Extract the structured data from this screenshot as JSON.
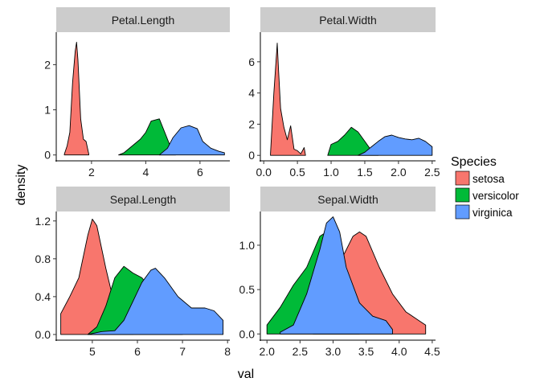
{
  "chart_data": {
    "type": "area",
    "subtype": "faceted density",
    "xlabel": "val",
    "ylabel": "density",
    "grid": false,
    "legend": {
      "title": "Species",
      "position": "right",
      "entries": [
        {
          "name": "setosa",
          "color": "#F8766D"
        },
        {
          "name": "versicolor",
          "color": "#00BA38"
        },
        {
          "name": "virginica",
          "color": "#619CFF"
        }
      ]
    },
    "facets": [
      {
        "title": "Petal.Length",
        "xlim": [
          0.7,
          7.1
        ],
        "ylim": [
          -0.13,
          2.72
        ],
        "xticks": [
          2,
          4,
          6
        ],
        "yticks": [
          0,
          1,
          2
        ],
        "series": [
          {
            "name": "setosa",
            "color": "#F8766D",
            "x": [
              1.0,
              1.1,
              1.2,
              1.3,
              1.4,
              1.45,
              1.5,
              1.6,
              1.7,
              1.8,
              1.9
            ],
            "y": [
              0.02,
              0.2,
              0.5,
              1.6,
              2.3,
              2.5,
              2.1,
              0.8,
              0.35,
              0.3,
              0.02
            ]
          },
          {
            "name": "versicolor",
            "color": "#00BA38",
            "x": [
              3.0,
              3.2,
              3.5,
              3.8,
              4.0,
              4.2,
              4.5,
              4.7,
              5.0,
              5.1
            ],
            "y": [
              0.0,
              0.05,
              0.2,
              0.35,
              0.5,
              0.75,
              0.8,
              0.5,
              0.05,
              0.0
            ]
          },
          {
            "name": "virginica",
            "color": "#619CFF",
            "x": [
              4.5,
              4.8,
              5.0,
              5.3,
              5.6,
              5.9,
              6.1,
              6.4,
              6.7,
              6.9
            ],
            "y": [
              0.0,
              0.15,
              0.38,
              0.6,
              0.65,
              0.58,
              0.3,
              0.15,
              0.08,
              0.05
            ]
          }
        ]
      },
      {
        "title": "Petal.Width",
        "xlim": [
          -0.05,
          2.55
        ],
        "ylim": [
          -0.35,
          7.9
        ],
        "xticks": [
          0.0,
          0.5,
          1.0,
          1.5,
          2.0,
          2.5
        ],
        "yticks": [
          0,
          2,
          4,
          6
        ],
        "series": [
          {
            "name": "setosa",
            "color": "#F8766D",
            "x": [
              0.1,
              0.15,
              0.2,
              0.22,
              0.25,
              0.3,
              0.35,
              0.4,
              0.45,
              0.5,
              0.55,
              0.6,
              0.62
            ],
            "y": [
              0.1,
              4.0,
              7.2,
              5.5,
              3.0,
              1.8,
              1.0,
              1.9,
              0.4,
              0.3,
              0.1,
              0.5,
              0.0
            ]
          },
          {
            "name": "versicolor",
            "color": "#00BA38",
            "x": [
              0.95,
              1.0,
              1.1,
              1.2,
              1.3,
              1.4,
              1.5,
              1.6,
              1.7
            ],
            "y": [
              0.0,
              0.7,
              0.9,
              1.3,
              1.8,
              1.5,
              0.9,
              0.3,
              0.0
            ]
          },
          {
            "name": "virginica",
            "color": "#619CFF",
            "x": [
              1.4,
              1.5,
              1.6,
              1.7,
              1.8,
              1.9,
              2.0,
              2.1,
              2.2,
              2.3,
              2.4,
              2.5
            ],
            "y": [
              0.0,
              0.2,
              0.55,
              0.9,
              1.2,
              1.3,
              1.15,
              1.05,
              1.0,
              1.1,
              0.9,
              0.55
            ]
          }
        ]
      },
      {
        "title": "Sepal.Length",
        "xlim": [
          4.2,
          8.05
        ],
        "ylim": [
          -0.06,
          1.3
        ],
        "xticks": [
          5,
          6,
          7,
          8
        ],
        "yticks": [
          0.0,
          0.4,
          0.8,
          1.2
        ],
        "series": [
          {
            "name": "setosa",
            "color": "#F8766D",
            "x": [
              4.3,
              4.5,
              4.7,
              4.9,
              5.0,
              5.1,
              5.3,
              5.5,
              5.7,
              5.9
            ],
            "y": [
              0.22,
              0.4,
              0.6,
              1.05,
              1.22,
              1.15,
              0.7,
              0.3,
              0.1,
              0.02
            ]
          },
          {
            "name": "versicolor",
            "color": "#00BA38",
            "x": [
              4.9,
              5.1,
              5.3,
              5.5,
              5.7,
              5.9,
              6.1,
              6.3,
              6.5,
              6.7,
              6.9,
              7.0
            ],
            "y": [
              0.0,
              0.08,
              0.3,
              0.6,
              0.72,
              0.65,
              0.6,
              0.48,
              0.35,
              0.2,
              0.05,
              0.0
            ]
          },
          {
            "name": "virginica",
            "color": "#619CFF",
            "x": [
              4.9,
              5.2,
              5.5,
              5.7,
              5.9,
              6.1,
              6.3,
              6.4,
              6.6,
              6.9,
              7.2,
              7.5,
              7.7,
              7.9
            ],
            "y": [
              0.0,
              0.03,
              0.04,
              0.15,
              0.35,
              0.55,
              0.68,
              0.7,
              0.6,
              0.4,
              0.28,
              0.28,
              0.25,
              0.15
            ]
          }
        ]
      },
      {
        "title": "Sepal.Width",
        "xlim": [
          1.9,
          4.55
        ],
        "ylim": [
          -0.07,
          1.38
        ],
        "xticks": [
          2.0,
          2.5,
          3.0,
          3.5,
          4.0,
          4.5
        ],
        "yticks": [
          0.0,
          0.5,
          1.0
        ],
        "series": [
          {
            "name": "setosa",
            "color": "#F8766D",
            "x": [
              2.7,
              2.9,
              3.1,
              3.3,
              3.4,
              3.5,
              3.7,
              3.9,
              4.1,
              4.3,
              4.4
            ],
            "y": [
              0.0,
              0.4,
              0.8,
              1.1,
              1.15,
              1.1,
              0.75,
              0.45,
              0.25,
              0.15,
              0.1
            ]
          },
          {
            "name": "versicolor",
            "color": "#00BA38",
            "x": [
              2.0,
              2.2,
              2.4,
              2.6,
              2.8,
              2.9,
              3.0,
              3.1,
              3.2,
              3.3,
              3.4
            ],
            "y": [
              0.1,
              0.3,
              0.55,
              0.75,
              1.1,
              1.15,
              1.1,
              0.75,
              0.35,
              0.1,
              0.0
            ]
          },
          {
            "name": "virginica",
            "color": "#619CFF",
            "x": [
              2.2,
              2.4,
              2.6,
              2.8,
              2.9,
              3.0,
              3.1,
              3.2,
              3.4,
              3.6,
              3.8,
              3.9
            ],
            "y": [
              0.02,
              0.1,
              0.45,
              0.95,
              1.25,
              1.32,
              1.15,
              0.75,
              0.35,
              0.2,
              0.15,
              0.05
            ]
          }
        ]
      }
    ]
  }
}
